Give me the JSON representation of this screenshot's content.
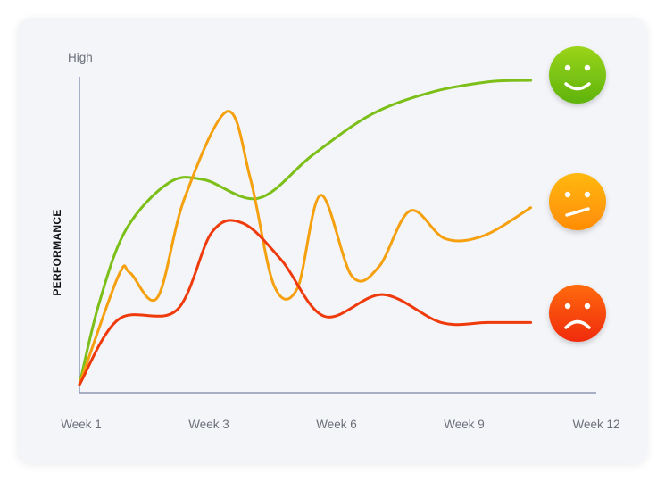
{
  "chart_data": {
    "type": "line",
    "ylabel": "PERFORMANCE",
    "y_top_label": "High",
    "x_ticks": [
      "Week 1",
      "Week 3",
      "Week 6",
      "Week 9",
      "Week 12"
    ],
    "x_tick_positions": [
      0,
      3,
      6,
      9,
      12
    ],
    "xlim": [
      0,
      12
    ],
    "ylim": [
      0,
      100
    ],
    "grid": false,
    "series": [
      {
        "color": "#7dbf19",
        "x": [
          0,
          0.5,
          1.2,
          2.3,
          3.2,
          4.6,
          6,
          7.5,
          9,
          10.5,
          11.6
        ],
        "y": [
          2,
          28,
          52,
          67,
          68,
          62,
          76,
          89,
          96,
          99.5,
          100
        ]
      },
      {
        "color": "#f5a00f",
        "x": [
          0,
          1,
          1.3,
          2,
          2.7,
          3.8,
          4.4,
          5,
          5.6,
          6.2,
          7,
          7.7,
          8.5,
          9.4,
          10.4,
          11.6
        ],
        "y": [
          2,
          37,
          38,
          30,
          62,
          90,
          68,
          34,
          33,
          63,
          37,
          40,
          58,
          49,
          50,
          59
        ]
      },
      {
        "color": "#ef3a0c",
        "x": [
          0,
          1,
          2.5,
          3.4,
          4.2,
          5.2,
          6.3,
          7.8,
          9.3,
          10.5,
          11.6
        ],
        "y": [
          2,
          23,
          26,
          51,
          54,
          42,
          24,
          31,
          22,
          22,
          22
        ]
      }
    ]
  },
  "faces": [
    {
      "icon": "happy-face-icon",
      "color": "#76c40d"
    },
    {
      "icon": "neutral-face-icon",
      "color": "#ff9a06"
    },
    {
      "icon": "sad-face-icon",
      "color": "#f2400a"
    }
  ]
}
